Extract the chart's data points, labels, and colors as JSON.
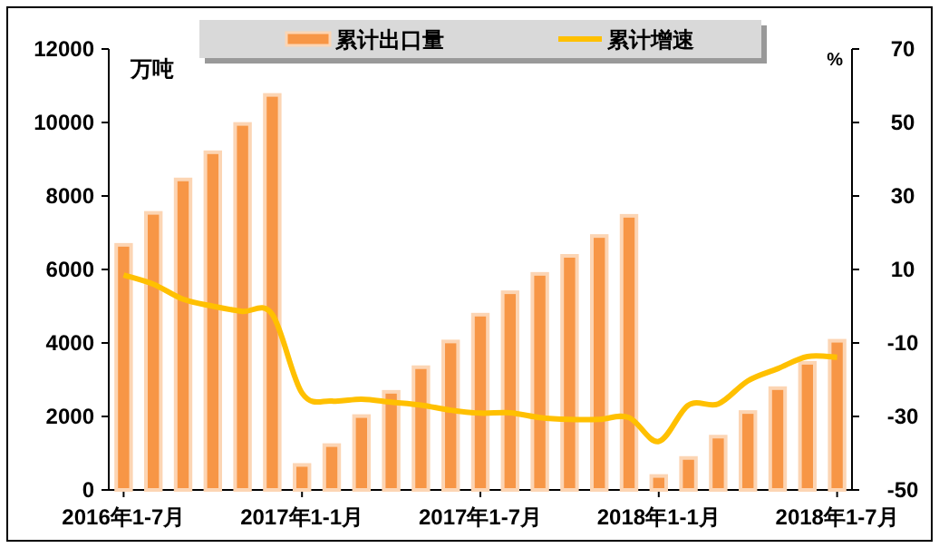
{
  "chart_data": {
    "type": "bar",
    "categories": [
      "2016年1-7月",
      null,
      null,
      null,
      null,
      null,
      "2017年1-1月",
      null,
      null,
      null,
      null,
      null,
      "2017年1-7月",
      null,
      null,
      null,
      null,
      null,
      "2018年1-1月",
      null,
      null,
      null,
      null,
      null,
      "2018年1-7月"
    ],
    "series": [
      {
        "name": "累计出口量",
        "color": "#f79646",
        "values": [
          6670,
          7540,
          8450,
          9190,
          9960,
          10750,
          680,
          1220,
          2010,
          2670,
          3340,
          4040,
          4770,
          5380,
          5880,
          6370,
          6910,
          7460,
          380,
          870,
          1450,
          2120,
          2770,
          3460,
          4060
        ]
      },
      {
        "name": "累计增速",
        "type": "line",
        "axis": "y2",
        "color": "#ffc000",
        "values": [
          8.5,
          6.0,
          1.9,
          0.0,
          -1.4,
          -2.2,
          -23.6,
          -25.8,
          -25.3,
          -26.1,
          -26.9,
          -28.3,
          -29.1,
          -29.0,
          -30.3,
          -30.8,
          -30.8,
          -30.3,
          -36.8,
          -26.9,
          -26.6,
          -20.3,
          -17.0,
          -13.7,
          -13.9
        ]
      }
    ],
    "ylabel": "万吨",
    "y2label": "%",
    "ylim": [
      0,
      12000
    ],
    "yticks": [
      0,
      2000,
      4000,
      6000,
      8000,
      10000,
      12000
    ],
    "y2lim": [
      -50,
      70
    ],
    "y2ticks": [
      -50,
      -30,
      -10,
      10,
      30,
      50,
      70
    ],
    "legend": "top",
    "grid": false,
    "marker": "none"
  }
}
